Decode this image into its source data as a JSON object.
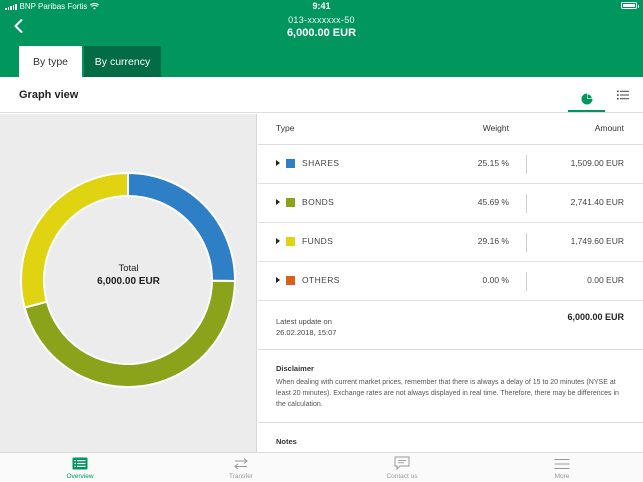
{
  "status_bar": {
    "carrier": "BNP Paribas Fortis",
    "time": "9:41"
  },
  "header": {
    "account_number": "013-xxxxxxx-50",
    "balance": "6,000.00 EUR",
    "tabs": [
      {
        "label": "By type",
        "active": true
      },
      {
        "label": "By currency",
        "active": false
      }
    ]
  },
  "graph_view": {
    "title": "Graph view",
    "icons": [
      "pie-chart-icon",
      "list-icon"
    ],
    "active_view": "pie-chart"
  },
  "chart_data": {
    "type": "pie",
    "categories": [
      "SHARES",
      "BONDS",
      "FUNDS",
      "OTHERS"
    ],
    "values": [
      25.15,
      45.69,
      29.16,
      0.0
    ],
    "colors": [
      "#2f7fc7",
      "#8ba31a",
      "#e0d312",
      "#d9601a"
    ],
    "center_label": "Total",
    "center_value": "6,000.00 EUR"
  },
  "table": {
    "headers": {
      "type": "Type",
      "weight": "Weight",
      "amount": "Amount"
    },
    "rows": [
      {
        "name": "SHARES",
        "weight": "25.15 %",
        "amount": "1,509.00 EUR",
        "color": "#2f7fc7"
      },
      {
        "name": "BONDS",
        "weight": "45.69 %",
        "amount": "2,741.40 EUR",
        "color": "#8ba31a"
      },
      {
        "name": "FUNDS",
        "weight": "29.16 %",
        "amount": "1,749.60 EUR",
        "color": "#e0d312"
      },
      {
        "name": "OTHERS",
        "weight": "0.00 %",
        "amount": "0.00 EUR",
        "color": "#d9601a"
      }
    ],
    "update_label": "Latest update on",
    "update_time": "26.02.2018, 15:07",
    "total": "6,000.00 EUR"
  },
  "disclaimer": {
    "title": "Disclaimer",
    "text": "When dealing with current market prices, remember that there is always a delay of 15 to 20 minutes (NYSE  at least 20 minutes). Exchange rates are not always displayed in real time. Therefore, there may be differences in the calculation."
  },
  "notes": {
    "title": "Notes"
  },
  "bottom_nav": [
    {
      "label": "Overview",
      "icon": "overview-icon",
      "active": true
    },
    {
      "label": "Transfer",
      "icon": "transfer-icon",
      "active": false
    },
    {
      "label": "Contact us",
      "icon": "chat-icon",
      "active": false
    },
    {
      "label": "More",
      "icon": "menu-icon",
      "active": false
    }
  ],
  "colors": {
    "brand_green": "#00965e",
    "dark_green": "#036b45"
  }
}
